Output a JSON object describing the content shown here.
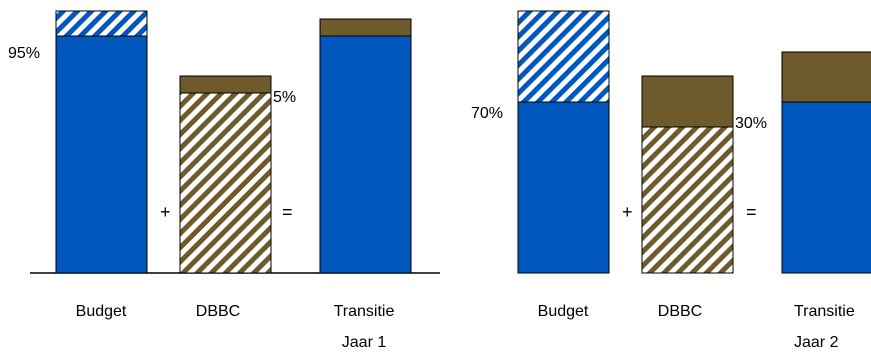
{
  "colors": {
    "blue": "#0057bd",
    "brown": "#6e5a2a",
    "hatch_bg": "#ffffff",
    "outline": "#000000"
  },
  "panels": [
    {
      "year_label": "Jaar 1",
      "budget_label": "Budget",
      "dbbc_label": "DBBC",
      "transitie_label": "Transitie",
      "budget_pct_label": "95%",
      "dbbc_pct_label": "5%",
      "plus": "+",
      "equals": "=",
      "budget_share": 0.95,
      "dbbc_share": 0.05
    },
    {
      "year_label": "Jaar 2",
      "budget_label": "Budget",
      "dbbc_label": "DBBC",
      "transitie_label": "Transitie",
      "budget_pct_label": "70%",
      "dbbc_pct_label": "30%",
      "plus": "+",
      "equals": "=",
      "budget_share": 0.7,
      "dbbc_share": 0.3
    }
  ]
}
